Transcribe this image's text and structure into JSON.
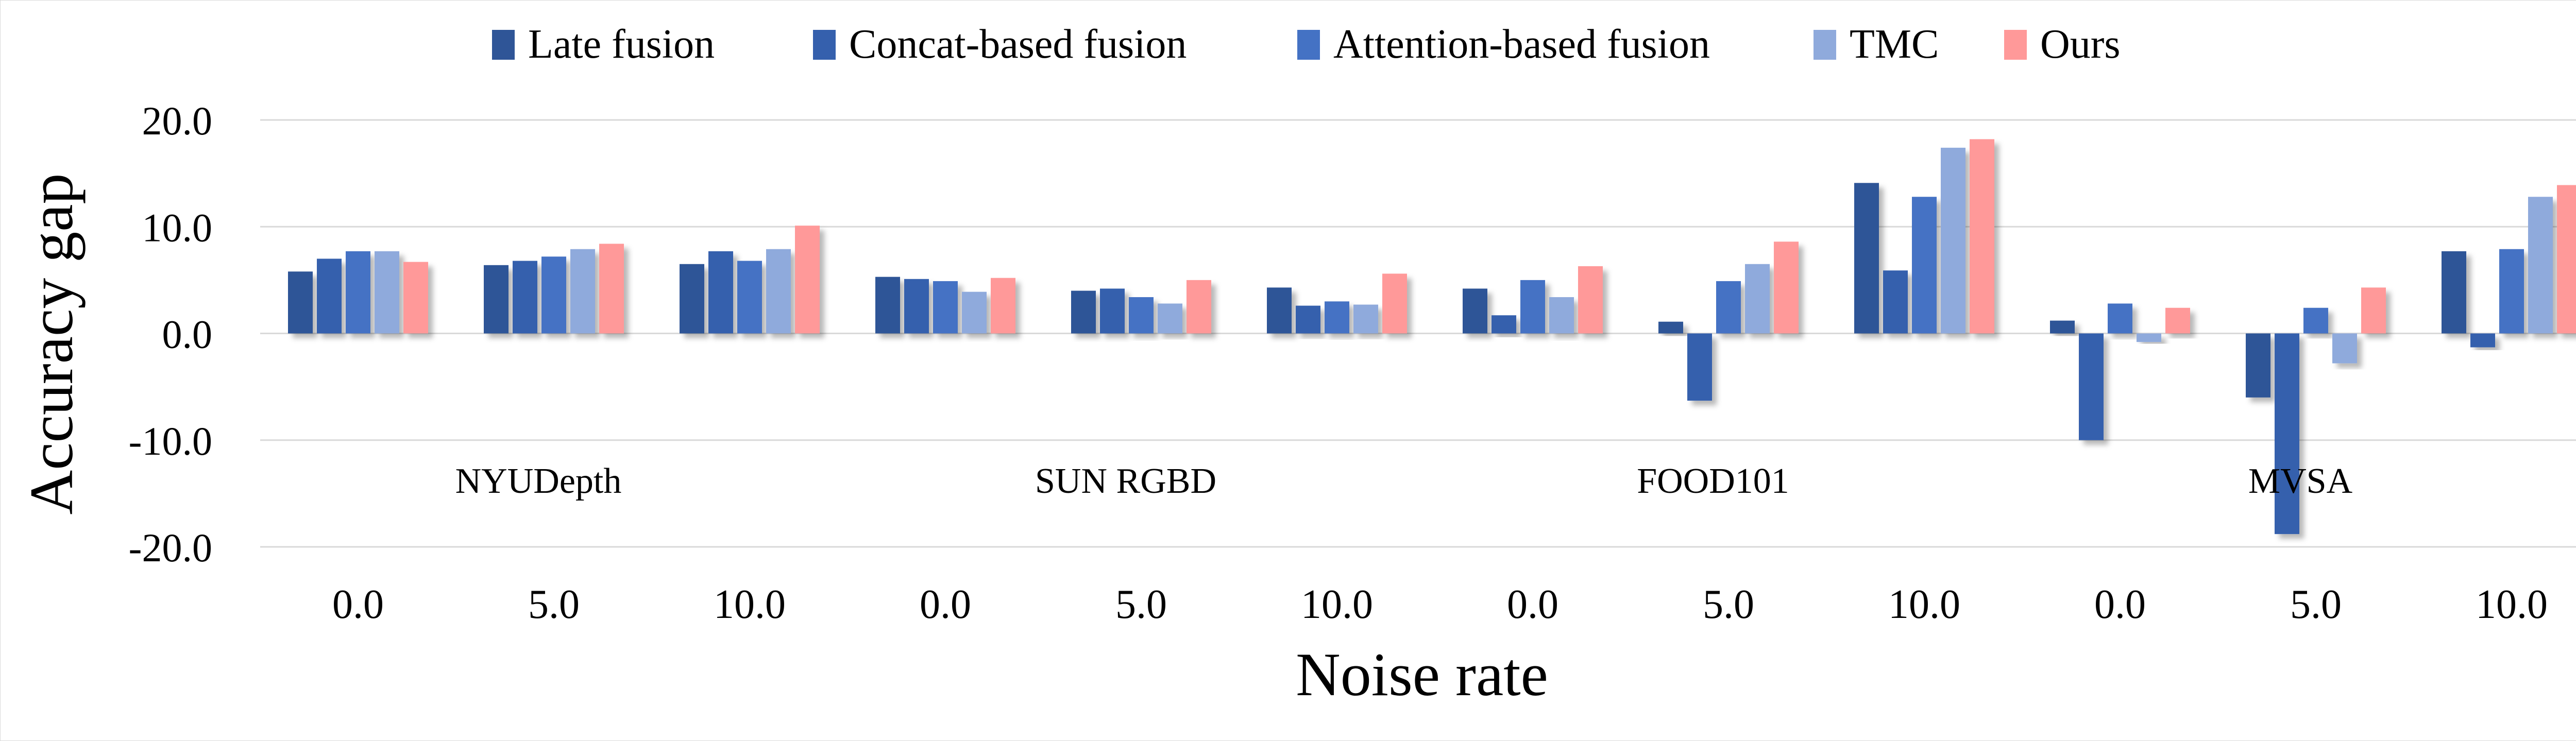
{
  "chart_data": {
    "type": "bar",
    "ylabel": "Accuracy gap",
    "xlabel": "Noise rate",
    "ylim": [
      -20,
      20
    ],
    "yticks": [
      20,
      10,
      0,
      -10,
      -20
    ],
    "ytick_labels": [
      "20.0",
      "10.0",
      "0.0",
      "-10.0",
      "-20.0"
    ],
    "grid": true,
    "legend_position": "top",
    "categories": [
      "0.0",
      "5.0",
      "10.0",
      "0.0",
      "5.0",
      "10.0",
      "0.0",
      "5.0",
      "10.0",
      "0.0",
      "5.0",
      "10.0"
    ],
    "groups": [
      {
        "label": "NYUDepth",
        "span": [
          0,
          2
        ]
      },
      {
        "label": "SUN RGBD",
        "span": [
          3,
          5
        ]
      },
      {
        "label": "FOOD101",
        "span": [
          6,
          8
        ]
      },
      {
        "label": "MVSA",
        "span": [
          9,
          11
        ]
      }
    ],
    "series": [
      {
        "name": "Late fusion",
        "color": "#2f5597",
        "values": [
          5.8,
          6.4,
          6.5,
          5.3,
          4.0,
          4.3,
          4.2,
          1.1,
          14.1,
          1.2,
          -6.0,
          7.7
        ]
      },
      {
        "name": "Concat-based fusion",
        "color": "#3560ad",
        "values": [
          7.0,
          6.8,
          7.7,
          5.1,
          4.2,
          2.6,
          1.7,
          -6.3,
          5.9,
          -10.0,
          -18.8,
          -1.3
        ]
      },
      {
        "name": "Attention-based fusion",
        "color": "#4472c4",
        "values": [
          7.7,
          7.2,
          6.8,
          4.9,
          3.4,
          3.0,
          5.0,
          4.9,
          12.8,
          2.8,
          2.4,
          7.9
        ]
      },
      {
        "name": "TMC",
        "color": "#8faadc",
        "values": [
          7.7,
          7.9,
          7.9,
          3.9,
          2.8,
          2.7,
          3.4,
          6.5,
          17.4,
          -0.8,
          -2.8,
          12.8
        ]
      },
      {
        "name": "Ours",
        "color": "#ff9999",
        "values": [
          6.7,
          8.4,
          10.1,
          5.2,
          5.0,
          5.6,
          6.3,
          8.6,
          18.2,
          2.4,
          4.3,
          13.9
        ]
      }
    ]
  }
}
